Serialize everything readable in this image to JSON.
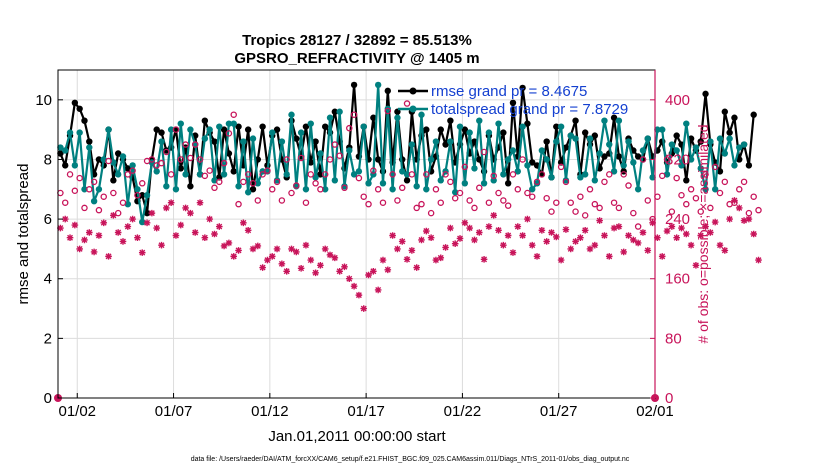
{
  "chart_data": {
    "type": "line",
    "title": "Tropics 28127 / 32892 = 85.513%",
    "subtitle": "GPSRO_REFRACTIVITY @ 1405 m",
    "xlabel": "Jan.01,2011 00:00:00 start",
    "ylabel": "rmse and totalspread",
    "ylabel_right": "# of obs: o=possible; ×=assimilated",
    "xlim": [
      0,
      31
    ],
    "ylim": [
      0,
      11
    ],
    "ylim_right": [
      0,
      440
    ],
    "x_ticks": [
      {
        "value": 1,
        "label": "01/02"
      },
      {
        "value": 6,
        "label": "01/07"
      },
      {
        "value": 11,
        "label": "01/12"
      },
      {
        "value": 16,
        "label": "01/17"
      },
      {
        "value": 21,
        "label": "01/22"
      },
      {
        "value": 26,
        "label": "01/27"
      },
      {
        "value": 31,
        "label": "02/01"
      }
    ],
    "y_ticks": [
      0,
      2,
      4,
      6,
      8,
      10
    ],
    "y_ticks_right": [
      0,
      80,
      160,
      240,
      320,
      400
    ],
    "legend_location": "top-right",
    "x_step": 0.25,
    "series": [
      {
        "name": "rmse",
        "legend_label": "rmse grand pr = 8.4675",
        "color": "#000000",
        "axis": "left",
        "values": [
          8.2,
          7.8,
          8.8,
          9.9,
          9.7,
          9.3,
          8.6,
          7.5,
          8.0,
          7.8,
          9.0,
          7.3,
          8.2,
          8.0,
          7.7,
          7.4,
          6.6,
          6.8,
          6.2,
          8.0,
          9.0,
          8.9,
          8.3,
          8.4,
          9.0,
          7.7,
          8.4,
          7.1,
          8.8,
          7.5,
          9.3,
          8.9,
          8.6,
          7.4,
          9.0,
          8.2,
          7.6,
          9.1,
          7.8,
          9.0,
          7.0,
          8.0,
          9.1,
          7.8,
          8.8,
          9.0,
          8.0,
          7.4,
          9.3,
          8.7,
          8.1,
          9.1,
          7.9,
          8.6,
          7.5,
          9.1,
          8.9,
          9.6,
          8.6,
          7.7,
          8.4,
          10.5,
          8.1,
          9.1,
          8.0,
          9.4,
          8.0,
          7.6,
          10.3,
          7.9,
          9.6,
          8.0,
          7.3,
          9.6,
          8.0,
          8.8,
          9.0,
          7.6,
          8.1,
          9.0,
          8.5,
          9.3,
          7.9,
          8.5,
          9.0,
          8.2,
          8.6,
          8.0,
          7.6,
          8.8,
          8.0,
          8.4,
          8.9,
          7.2,
          9.9,
          8.1,
          10.4,
          9.2,
          7.9,
          7.8,
          7.5,
          8.6,
          7.4,
          9.1,
          7.9,
          8.4,
          8.8,
          9.3,
          7.5,
          8.9,
          8.5,
          8.8,
          7.7,
          8.1,
          8.2,
          9.4,
          8.1,
          7.6,
          8.7,
          8.3,
          8.1,
          8.0,
          8.7,
          8.1,
          8.3,
          8.6,
          7.9,
          8.2,
          8.8,
          8.5,
          7.3,
          8.7,
          8.3,
          8.6,
          10.2,
          8.5,
          7.9,
          7.6,
          9.6,
          8.9,
          9.4,
          8.0,
          8.5,
          7.8,
          9.5
        ]
      },
      {
        "name": "totalspread",
        "legend_label": "totalspread grand pr = 7.8729",
        "color": "#008080",
        "axis": "left",
        "values": [
          8.4,
          8.3,
          8.9,
          7.8,
          8.9,
          7.0,
          8.4,
          6.6,
          7.0,
          8.0,
          9.0,
          7.9,
          7.5,
          8.1,
          6.5,
          7.8,
          7.0,
          5.9,
          6.8,
          7.9,
          7.6,
          8.6,
          7.1,
          9.0,
          7.0,
          9.2,
          7.5,
          9.0,
          8.5,
          7.5,
          8.7,
          9.0,
          7.3,
          9.1,
          7.5,
          9.2,
          9.2,
          7.1,
          8.6,
          6.9,
          8.7,
          7.2,
          7.6,
          7.6,
          8.9,
          7.3,
          8.6,
          7.5,
          9.5,
          7.1,
          8.9,
          7.0,
          9.2,
          7.4,
          8.2,
          7.0,
          9.4,
          7.3,
          9.6,
          7.1,
          8.3,
          7.5,
          7.6,
          9.1,
          7.2,
          7.5,
          10.5,
          7.2,
          9.7,
          7.0,
          9.4,
          7.6,
          7.5,
          8.5,
          7.1,
          9.5,
          7.0,
          8.0,
          8.6,
          7.3,
          7.6,
          8.6,
          6.9,
          9.1,
          7.2,
          8.9,
          7.7,
          9.3,
          7.2,
          8.9,
          7.3,
          9.2,
          7.5,
          8.0,
          8.3,
          7.6,
          9.1,
          7.8,
          7.0,
          7.2,
          8.3,
          8.0,
          7.4,
          8.6,
          9.1,
          7.3,
          8.8,
          8.7,
          7.4,
          7.5,
          8.7,
          7.3,
          8.2,
          9.3,
          8.5,
          7.6,
          9.3,
          7.8,
          8.6,
          7.9,
          7.0,
          8.3,
          8.7,
          7.4,
          9.0,
          9.0,
          7.5,
          8.5,
          8.3,
          7.8,
          9.2,
          8.0,
          8.4,
          7.7,
          7.0,
          8.6,
          7.0,
          8.7,
          8.2,
          8.7,
          7.8,
          8.4,
          8.5
        ]
      },
      {
        "name": "obs possible",
        "color": "#c8145a",
        "axis": "right",
        "marker": "o",
        "values": [
          275,
          262,
          300,
          278,
          295,
          255,
          280,
          290,
          252,
          270,
          318,
          275,
          248,
          262,
          300,
          305,
          272,
          288,
          318,
          320,
          312,
          315,
          330,
          300,
          360,
          320,
          340,
          322,
          340,
          320,
          298,
          305,
          282,
          290,
          315,
          355,
          380,
          260,
          290,
          300,
          288,
          265,
          300,
          305,
          280,
          290,
          265,
          320,
          275,
          285,
          322,
          262,
          300,
          288,
          280,
          300,
          320,
          340,
          325,
          282,
          362,
          380,
          295,
          270,
          260,
          305,
          280,
          262,
          385,
          300,
          265,
          282,
          395,
          300,
          255,
          260,
          300,
          248,
          280,
          262,
          300,
          290,
          268,
          275,
          310,
          265,
          255,
          282,
          330,
          262,
          298,
          275,
          265,
          258,
          300,
          280,
          320,
          275,
          270,
          290,
          300,
          268,
          250,
          262,
          310,
          290,
          262,
          250,
          270,
          245,
          280,
          260,
          255,
          290,
          300,
          262,
          255,
          300,
          285,
          248,
          230,
          320,
          265,
          240,
          270,
          298,
          320,
          250,
          295,
          272,
          260,
          280,
          268,
          250,
          300,
          255,
          310,
          275,
          290,
          260,
          262,
          280,
          290,
          248,
          270,
          252
        ]
      },
      {
        "name": "obs assimilated",
        "color": "#c8145a",
        "axis": "right",
        "marker": "x",
        "values": [
          228,
          240,
          215,
          232,
          200,
          212,
          222,
          196,
          218,
          235,
          190,
          245,
          222,
          210,
          230,
          240,
          215,
          195,
          235,
          248,
          228,
          205,
          255,
          262,
          218,
          232,
          255,
          248,
          222,
          262,
          215,
          240,
          220,
          230,
          204,
          208,
          190,
          198,
          235,
          225,
          200,
          204,
          175,
          185,
          190,
          200,
          180,
          170,
          200,
          196,
          174,
          205,
          185,
          168,
          178,
          200,
          192,
          188,
          170,
          176,
          160,
          150,
          138,
          120,
          165,
          170,
          145,
          185,
          172,
          218,
          200,
          210,
          186,
          198,
          175,
          212,
          224,
          215,
          185,
          188,
          202,
          228,
          207,
          214,
          235,
          228,
          212,
          222,
          186,
          230,
          245,
          225,
          205,
          218,
          195,
          230,
          218,
          240,
          205,
          190,
          225,
          210,
          222,
          216,
          185,
          226,
          200,
          210,
          215,
          225,
          200,
          205,
          238,
          218,
          190,
          228,
          230,
          196,
          218,
          212,
          208,
          222,
          198,
          235,
          215,
          190,
          224,
          230,
          215,
          228,
          220,
          205,
          178,
          218,
          230,
          222,
          236,
          205,
          198,
          240,
          265,
          255,
          238,
          240,
          220,
          185
        ]
      }
    ]
  },
  "footer_text": "data file: /Users/raeder/DAI/ATM_forcXX/CAM6_setup/f.e21.FHIST_BGC.f09_025.CAM6assim.011/Diags_NTrS_2011-01/obs_diag_output.nc"
}
